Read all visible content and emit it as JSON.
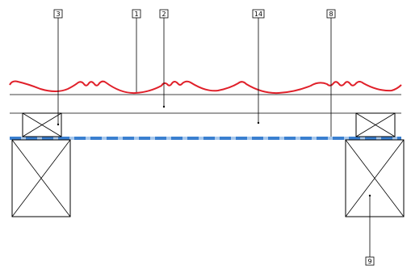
{
  "labels": [
    {
      "id": "1",
      "text": "1"
    },
    {
      "id": "2",
      "text": "2"
    },
    {
      "id": "3",
      "text": "3"
    },
    {
      "id": "14",
      "text": "14"
    },
    {
      "id": "8",
      "text": "8"
    },
    {
      "id": "9",
      "text": "9"
    }
  ],
  "colors": {
    "wave": "#e0202a",
    "membrane_dash": "#3a7fd0",
    "membrane_gap": "#a8c8ec",
    "lines": "#000000"
  }
}
